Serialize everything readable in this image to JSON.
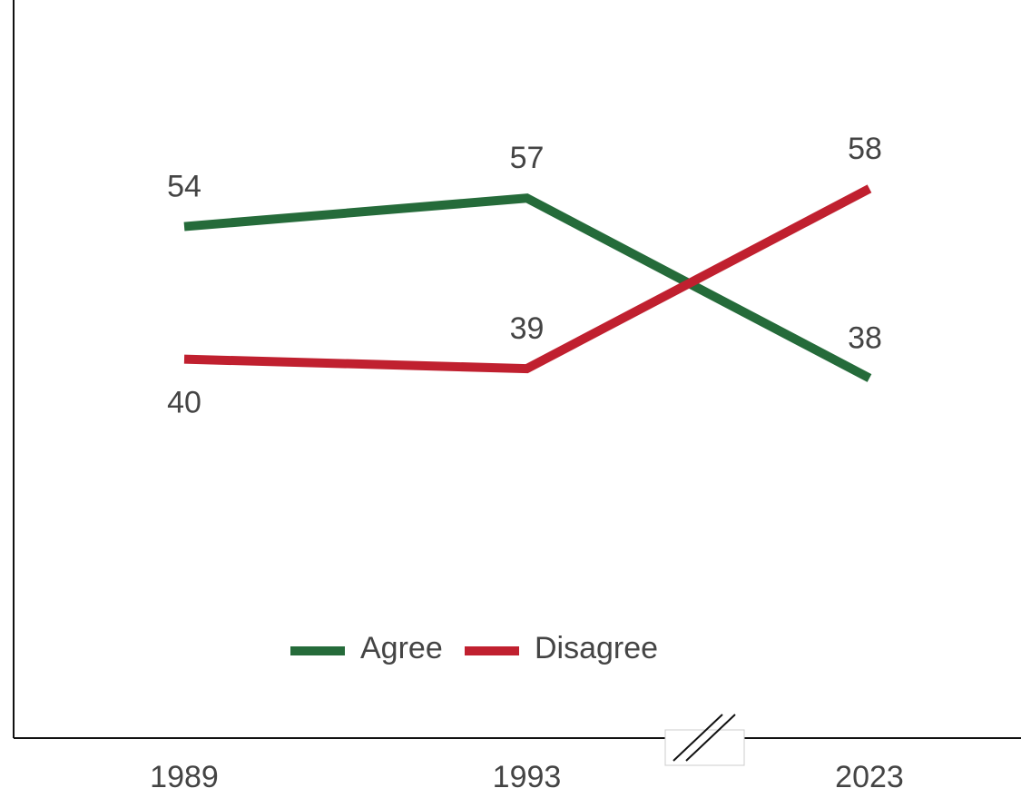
{
  "chart_data": {
    "type": "line",
    "categories": [
      "1989",
      "1993",
      "2023"
    ],
    "series": [
      {
        "name": "Agree",
        "color": "#256b3a",
        "values": [
          54,
          57,
          38
        ]
      },
      {
        "name": "Disagree",
        "color": "#c0202f",
        "values": [
          40,
          39,
          58
        ]
      }
    ],
    "ylim": [
      0,
      76
    ],
    "legend": "bottom"
  }
}
